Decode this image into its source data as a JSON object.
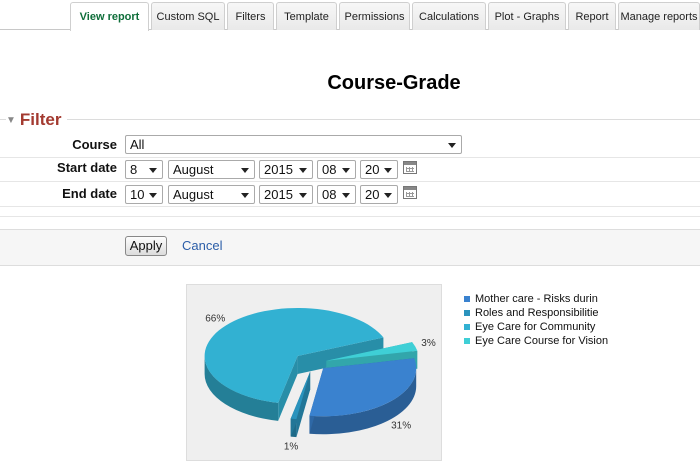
{
  "tabs": [
    {
      "label": "View report",
      "active": true
    },
    {
      "label": "Custom SQL"
    },
    {
      "label": "Filters"
    },
    {
      "label": "Template"
    },
    {
      "label": "Permissions"
    },
    {
      "label": "Calculations"
    },
    {
      "label": "Plot - Graphs"
    },
    {
      "label": "Report"
    },
    {
      "label": "Manage reports"
    }
  ],
  "page_title": "Course-Grade",
  "filter": {
    "legend": "Filter",
    "course_label": "Course",
    "course_value": "All",
    "start_label": "Start date",
    "start": {
      "day": "8",
      "month": "August",
      "year": "2015",
      "hour": "08",
      "minute": "20"
    },
    "end_label": "End date",
    "end": {
      "day": "10",
      "month": "August",
      "year": "2015",
      "hour": "08",
      "minute": "20"
    }
  },
  "buttons": {
    "apply": "Apply",
    "cancel": "Cancel"
  },
  "chart_data": {
    "type": "pie",
    "style": "3d-exploded",
    "slices": [
      {
        "name": "Mother care - Risks durin",
        "value": 31,
        "label": "31%",
        "color": "#3a82cf"
      },
      {
        "name": "Roles and Responsibilitie",
        "value": 1,
        "label": "1%",
        "color": "#2a93bd"
      },
      {
        "name": "Eye Care for Community",
        "value": 66,
        "label": "66%",
        "color": "#32b1d2"
      },
      {
        "name": "Eye Care Course for Vision",
        "value": 3,
        "label": "3%",
        "color": "#3fcfd6"
      }
    ],
    "legend_position": "right"
  }
}
